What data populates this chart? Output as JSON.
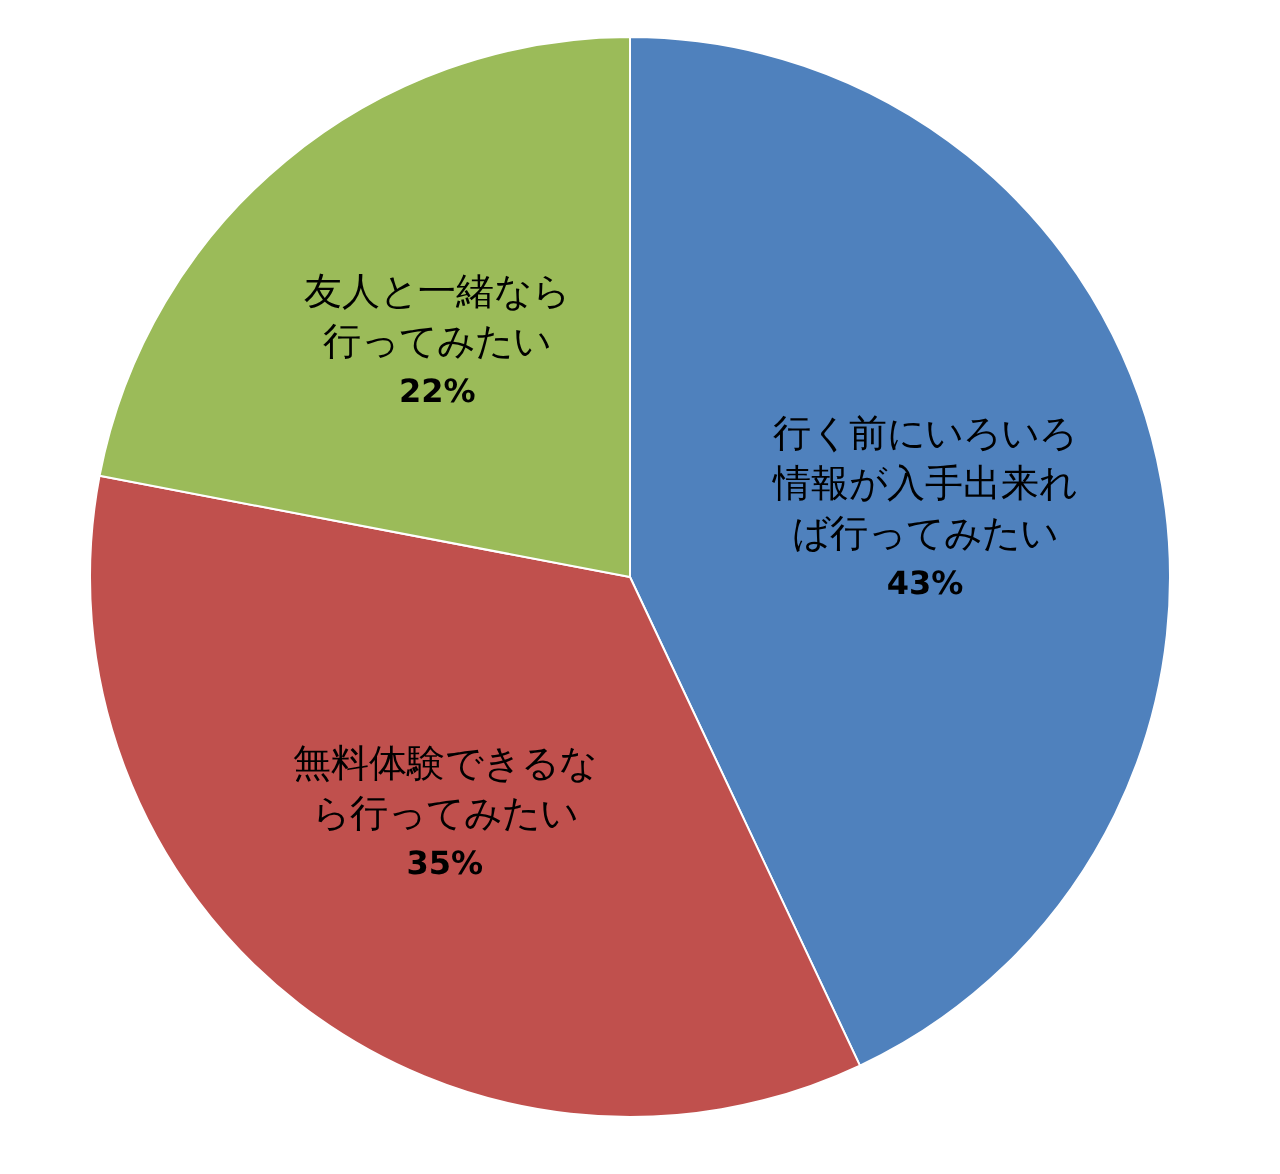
{
  "chart_data": {
    "type": "pie",
    "categories": [
      "行く前にいろいろ情報が入手出来れば行ってみたい",
      "無料体験できるなら行ってみたい",
      "友人と一緒なら行ってみたい"
    ],
    "values": [
      43,
      35,
      22
    ],
    "colors": [
      "#4f81bd",
      "#c0504d",
      "#9bbb59"
    ],
    "value_labels": [
      "43%",
      "35%",
      "22%"
    ],
    "legend": false
  }
}
